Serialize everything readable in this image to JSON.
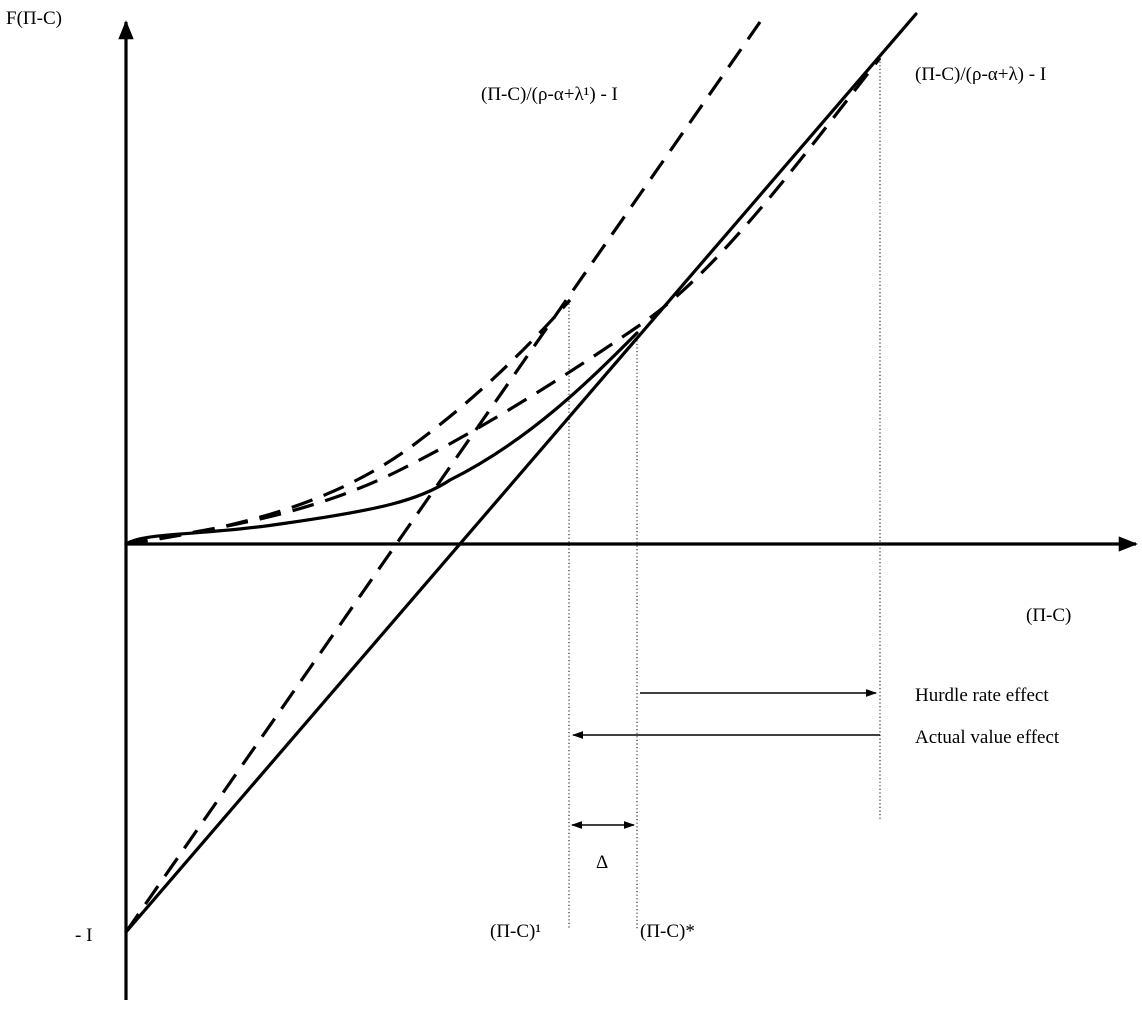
{
  "axes": {
    "y_label": "F(Π-C)",
    "x_label": "(Π-C)",
    "y_intercept_label": "- I"
  },
  "lines": {
    "steep_dashed_label": "(Π-C)/(ρ-α+λ¹) - I",
    "solid_label": "(Π-C)/(ρ-α+λ) - I"
  },
  "thresholds": {
    "lambda1_label": "(Π-C)¹",
    "star_label": "(Π-C)*",
    "delta_label": "Δ"
  },
  "effects": {
    "hurdle_rate": "Hurdle rate effect",
    "actual_value": "Actual value effect"
  }
}
